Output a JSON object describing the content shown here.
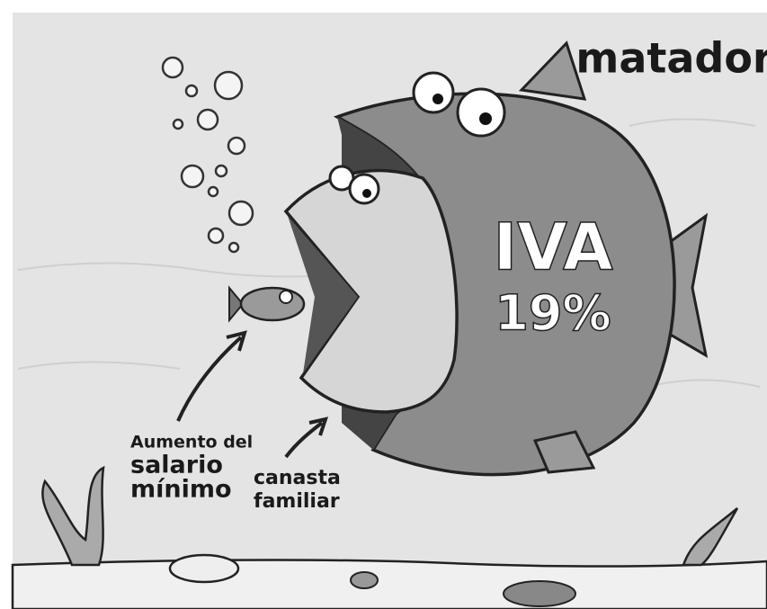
{
  "cartoon": {
    "signature": "matador",
    "big_fish": {
      "line1": "IVA",
      "line2": "19%"
    },
    "small_fish_label": {
      "line1": "Aumento del",
      "line2": "salario",
      "line3": "mínimo"
    },
    "medium_fish_label": {
      "line1": "canasta",
      "line2": "familiar"
    }
  }
}
